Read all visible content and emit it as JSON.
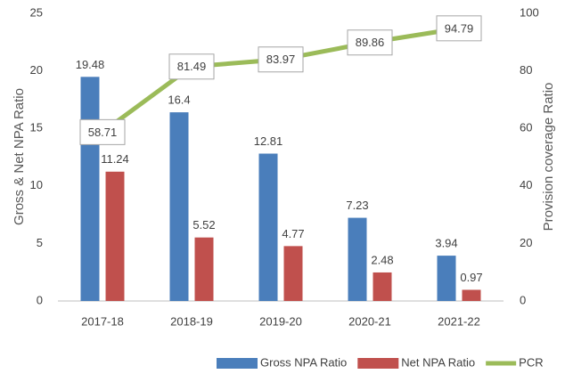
{
  "chart_data": {
    "type": "bar_line",
    "categories": [
      "2017-18",
      "2018-19",
      "2019-20",
      "2020-21",
      "2021-22"
    ],
    "series": [
      {
        "name": "Gross NPA Ratio",
        "color": "#4a7ebb",
        "type": "bar",
        "values": [
          19.48,
          16.4,
          12.81,
          7.23,
          3.94
        ]
      },
      {
        "name": "Net NPA Ratio",
        "color": "#c0504d",
        "type": "bar",
        "values": [
          11.24,
          5.52,
          4.77,
          2.48,
          0.97
        ]
      },
      {
        "name": "PCR",
        "color": "#9bbb59",
        "type": "line",
        "axis": "y2",
        "values": [
          58.71,
          81.49,
          83.97,
          89.86,
          94.79
        ]
      }
    ],
    "ylabel": "Gross & Net NPA Ratio",
    "y2label": "Provision coverage Ratio",
    "ylim": [
      0,
      25
    ],
    "yticks": [
      0,
      5,
      10,
      15,
      20,
      25
    ],
    "y2lim": [
      0,
      100
    ],
    "y2ticks": [
      0,
      20,
      40,
      60,
      80,
      100
    ],
    "legend": "bottom"
  }
}
